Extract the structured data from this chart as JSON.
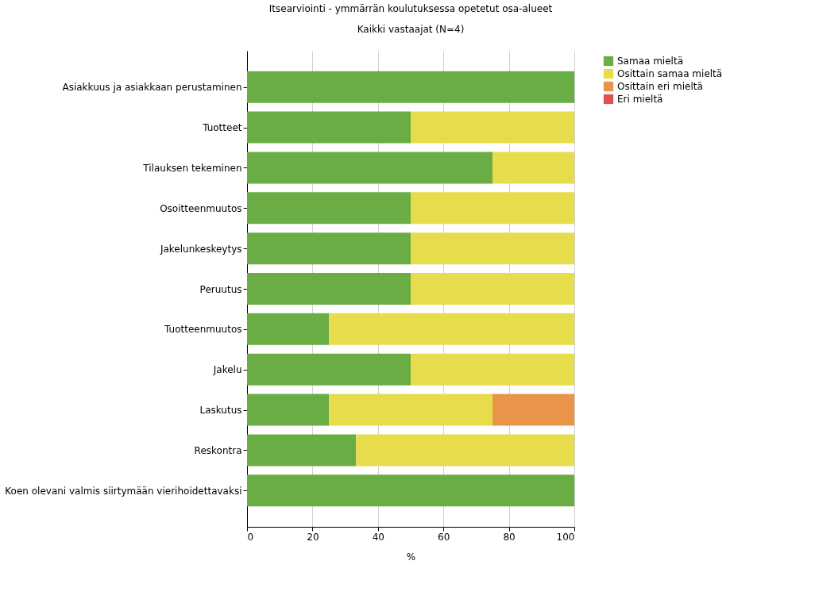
{
  "chart_data": {
    "type": "bar",
    "orientation": "horizontal",
    "stacked": true,
    "title": "Itsearviointi - ymmärrän koulutuksessa opetetut osa-alueet",
    "subtitle": "Kaikki vastaajat (N=4)",
    "xlabel": "%",
    "categories": [
      "Asiakkuus ja asiakkaan perustaminen",
      "Tuotteet",
      "Tilauksen tekeminen",
      "Osoitteenmuutos",
      "Jakelunkeskeytys",
      "Peruutus",
      "Tuotteenmuutos",
      "Jakelu",
      "Laskutus",
      "Reskontra",
      "Koen olevani valmis siirtymään vierihoidettavaksi"
    ],
    "series": [
      {
        "name": "Samaa mieltä",
        "color": "#6aad45",
        "values": [
          100,
          50,
          75,
          50,
          50,
          50,
          25,
          50,
          25,
          33.3,
          100
        ]
      },
      {
        "name": "Osittain samaa mieltä",
        "color": "#e6dc4c",
        "values": [
          0,
          50,
          25,
          50,
          50,
          50,
          75,
          50,
          50,
          66.7,
          0
        ]
      },
      {
        "name": "Osittain eri mieltä",
        "color": "#e8954a",
        "values": [
          0,
          0,
          0,
          0,
          0,
          0,
          0,
          0,
          25,
          0,
          0
        ]
      },
      {
        "name": "Eri mieltä",
        "color": "#e05252",
        "values": [
          0,
          0,
          0,
          0,
          0,
          0,
          0,
          0,
          0,
          0,
          0
        ]
      }
    ],
    "xlim": [
      0,
      100
    ],
    "xticks": [
      0,
      20,
      40,
      60,
      80,
      100
    ],
    "grid": "x",
    "legend": "top right"
  }
}
